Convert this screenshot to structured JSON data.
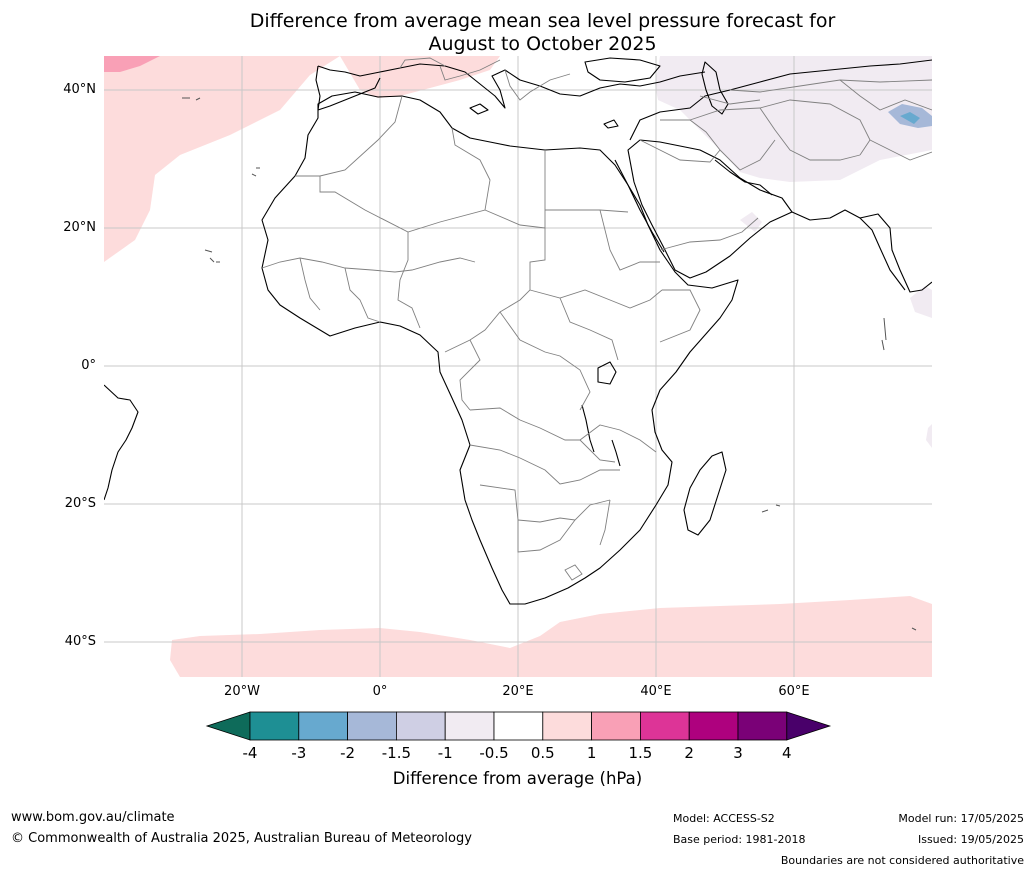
{
  "title": {
    "line1": "Difference from average mean sea level pressure forecast for",
    "line2": "August to October 2025"
  },
  "map": {
    "lat_labels": [
      "40°N",
      "20°N",
      "0°",
      "20°S",
      "40°S"
    ],
    "lon_labels": [
      "20°W",
      "0°",
      "20°E",
      "40°E",
      "60°E"
    ],
    "extent": {
      "lon_min": -40,
      "lon_max": 80,
      "lat_min": -45,
      "lat_max": 45
    },
    "gridlines": true
  },
  "colorbar": {
    "ticks": [
      "-4",
      "-3",
      "-2",
      "-1.5",
      "-1",
      "-0.5",
      "0.5",
      "1",
      "1.5",
      "2",
      "3",
      "4"
    ],
    "colors": [
      "#0e6b5a",
      "#1e8f94",
      "#67a9cf",
      "#a6b8d8",
      "#cfcfe4",
      "#f1ebf2",
      "#ffffff",
      "#fddcdc",
      "#f9a0b6",
      "#dd3497",
      "#ae017e",
      "#7a0177",
      "#49006a"
    ],
    "title": "Difference from average (hPa)"
  },
  "footer": {
    "website": "www.bom.gov.au/climate",
    "copyright": "© Commonwealth of Australia 2025, Australian Bureau of Meteorology",
    "model": "Model: ACCESS-S2",
    "base_period": "Base period: 1981-2018",
    "model_run": "Model run: 17/05/2025",
    "issued": "Issued: 19/05/2025",
    "disclaimer": "Boundaries are not considered authoritative"
  }
}
